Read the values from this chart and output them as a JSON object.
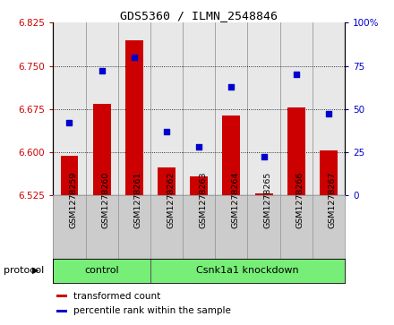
{
  "title": "GDS5360 / ILMN_2548846",
  "samples": [
    "GSM1278259",
    "GSM1278260",
    "GSM1278261",
    "GSM1278262",
    "GSM1278263",
    "GSM1278264",
    "GSM1278265",
    "GSM1278266",
    "GSM1278267"
  ],
  "transformed_count": [
    6.594,
    6.683,
    6.795,
    6.573,
    6.557,
    6.663,
    6.528,
    6.678,
    6.603
  ],
  "percentile_rank": [
    42,
    72,
    80,
    37,
    28,
    63,
    22,
    70,
    47
  ],
  "ylim_left": [
    6.525,
    6.825
  ],
  "ylim_right": [
    0,
    100
  ],
  "yticks_left": [
    6.525,
    6.6,
    6.675,
    6.75,
    6.825
  ],
  "yticks_right": [
    0,
    25,
    50,
    75,
    100
  ],
  "ytick_labels_right": [
    "0",
    "25",
    "50",
    "75",
    "100%"
  ],
  "bar_color": "#cc0000",
  "scatter_color": "#0000cc",
  "left_tick_color": "#cc0000",
  "right_tick_color": "#0000cc",
  "protocol_groups": [
    {
      "label": "control",
      "start": 0,
      "end": 3
    },
    {
      "label": "Csnk1a1 knockdown",
      "start": 3,
      "end": 9
    }
  ],
  "protocol_label": "protocol",
  "group_bg_color": "#77ee77",
  "sample_box_color": "#cccccc",
  "bar_width": 0.55,
  "legend_items": [
    {
      "label": "transformed count",
      "color": "#cc0000"
    },
    {
      "label": "percentile rank within the sample",
      "color": "#0000cc"
    }
  ],
  "bg_color": "#ffffff"
}
